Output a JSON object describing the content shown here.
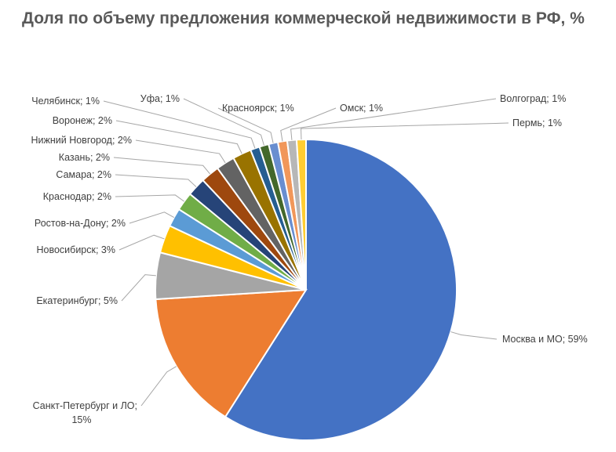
{
  "chart_data": {
    "type": "pie",
    "title": "Доля по объему предложения коммерческой недвижимости в РФ, %",
    "slices": [
      {
        "label": "Москва и МО; 59%",
        "value": 59,
        "color": "#4472C4"
      },
      {
        "label": "Санкт-Петербург и ЛО; 15%",
        "value": 15,
        "color": "#ED7D31"
      },
      {
        "label": "Екатеринбург; 5%",
        "value": 5,
        "color": "#A5A5A5"
      },
      {
        "label": "Новосибирск; 3%",
        "value": 3,
        "color": "#FFC000"
      },
      {
        "label": "Ростов-на-Дону; 2%",
        "value": 2,
        "color": "#5B9BD5"
      },
      {
        "label": "Краснодар; 2%",
        "value": 2,
        "color": "#70AD47"
      },
      {
        "label": "Самара; 2%",
        "value": 2,
        "color": "#264478"
      },
      {
        "label": "Казань; 2%",
        "value": 2,
        "color": "#9E480E"
      },
      {
        "label": "Нижний Новгород; 2%",
        "value": 2,
        "color": "#636363"
      },
      {
        "label": "Воронеж; 2%",
        "value": 2,
        "color": "#997300"
      },
      {
        "label": "Челябинск; 1%",
        "value": 1,
        "color": "#255E91"
      },
      {
        "label": "Уфа; 1%",
        "value": 1,
        "color": "#43682B"
      },
      {
        "label": "Красноярск; 1%",
        "value": 1,
        "color": "#698ED0"
      },
      {
        "label": "Омск; 1%",
        "value": 1,
        "color": "#F1975A"
      },
      {
        "label": "Волгоград; 1%",
        "value": 1,
        "color": "#B7B7B7"
      },
      {
        "label": "Пермь; 1%",
        "value": 1,
        "color": "#FFCD33"
      }
    ]
  }
}
